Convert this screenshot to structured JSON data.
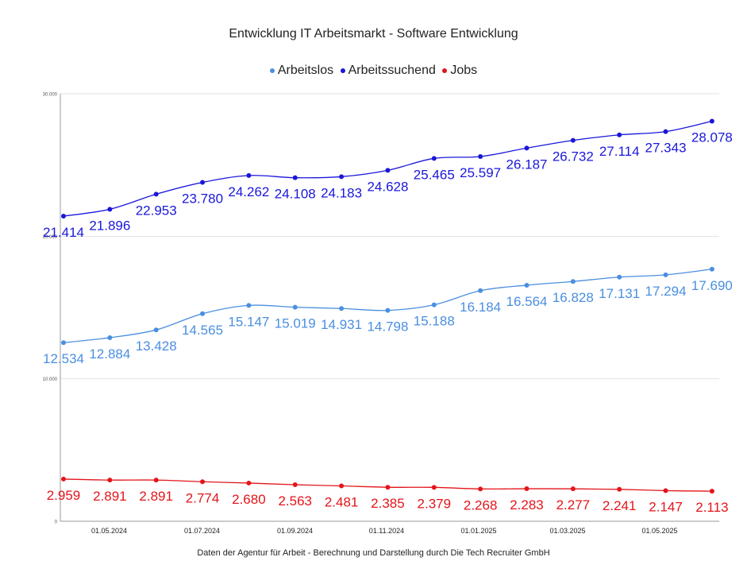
{
  "chart_data": {
    "type": "line",
    "title": "Entwicklung IT Arbeitsmarkt  - Software Entwicklung",
    "footer": "Daten der Agentur für Arbeit - Berechnung und Darstellung durch Die Tech Recruiter GmbH",
    "x_ticks": [
      "01.05.2024",
      "01.07.2024",
      "01.09.2024",
      "01.11.2024",
      "01.01.2025",
      "01.03.2025",
      "01.05.2025"
    ],
    "y_ticks": [
      "0",
      "10.000",
      "20.000",
      "30.000"
    ],
    "ylim": [
      0,
      30000
    ],
    "grid": true,
    "legend_position": "top",
    "series": [
      {
        "name": "Arbeitslos",
        "color": "#4a8fe0",
        "values": [
          12534,
          12884,
          13428,
          14565,
          15147,
          15019,
          14931,
          14798,
          15188,
          16184,
          16564,
          16828,
          17131,
          17294,
          17690
        ],
        "labels": [
          "12.534",
          "12.884",
          "13.428",
          "14.565",
          "15.147",
          "15.019",
          "14.931",
          "14.798",
          "15.188",
          "16.184",
          "16.564",
          "16.828",
          "17.131",
          "17.294",
          "17.690"
        ]
      },
      {
        "name": "Arbeitssuchend",
        "color": "#1a17d9",
        "values": [
          21414,
          21896,
          22953,
          23780,
          24262,
          24108,
          24183,
          24628,
          25465,
          25597,
          26187,
          26732,
          27114,
          27343,
          28078
        ],
        "labels": [
          "21.414",
          "21.896",
          "22.953",
          "23.780",
          "24.262",
          "24.108",
          "24.183",
          "24.628",
          "25.465",
          "25.597",
          "26.187",
          "26.732",
          "27.114",
          "27.343",
          "28.078"
        ]
      },
      {
        "name": "Jobs",
        "color": "#e3151a",
        "values": [
          2959,
          2891,
          2891,
          2774,
          2680,
          2563,
          2481,
          2385,
          2379,
          2268,
          2283,
          2277,
          2241,
          2147,
          2113
        ],
        "labels": [
          "2.959",
          "2.891",
          "2.891",
          "2.774",
          "2.680",
          "2.563",
          "2.481",
          "2.385",
          "2.379",
          "2.268",
          "2.283",
          "2.277",
          "2.241",
          "2.147",
          "2.113"
        ]
      }
    ]
  }
}
